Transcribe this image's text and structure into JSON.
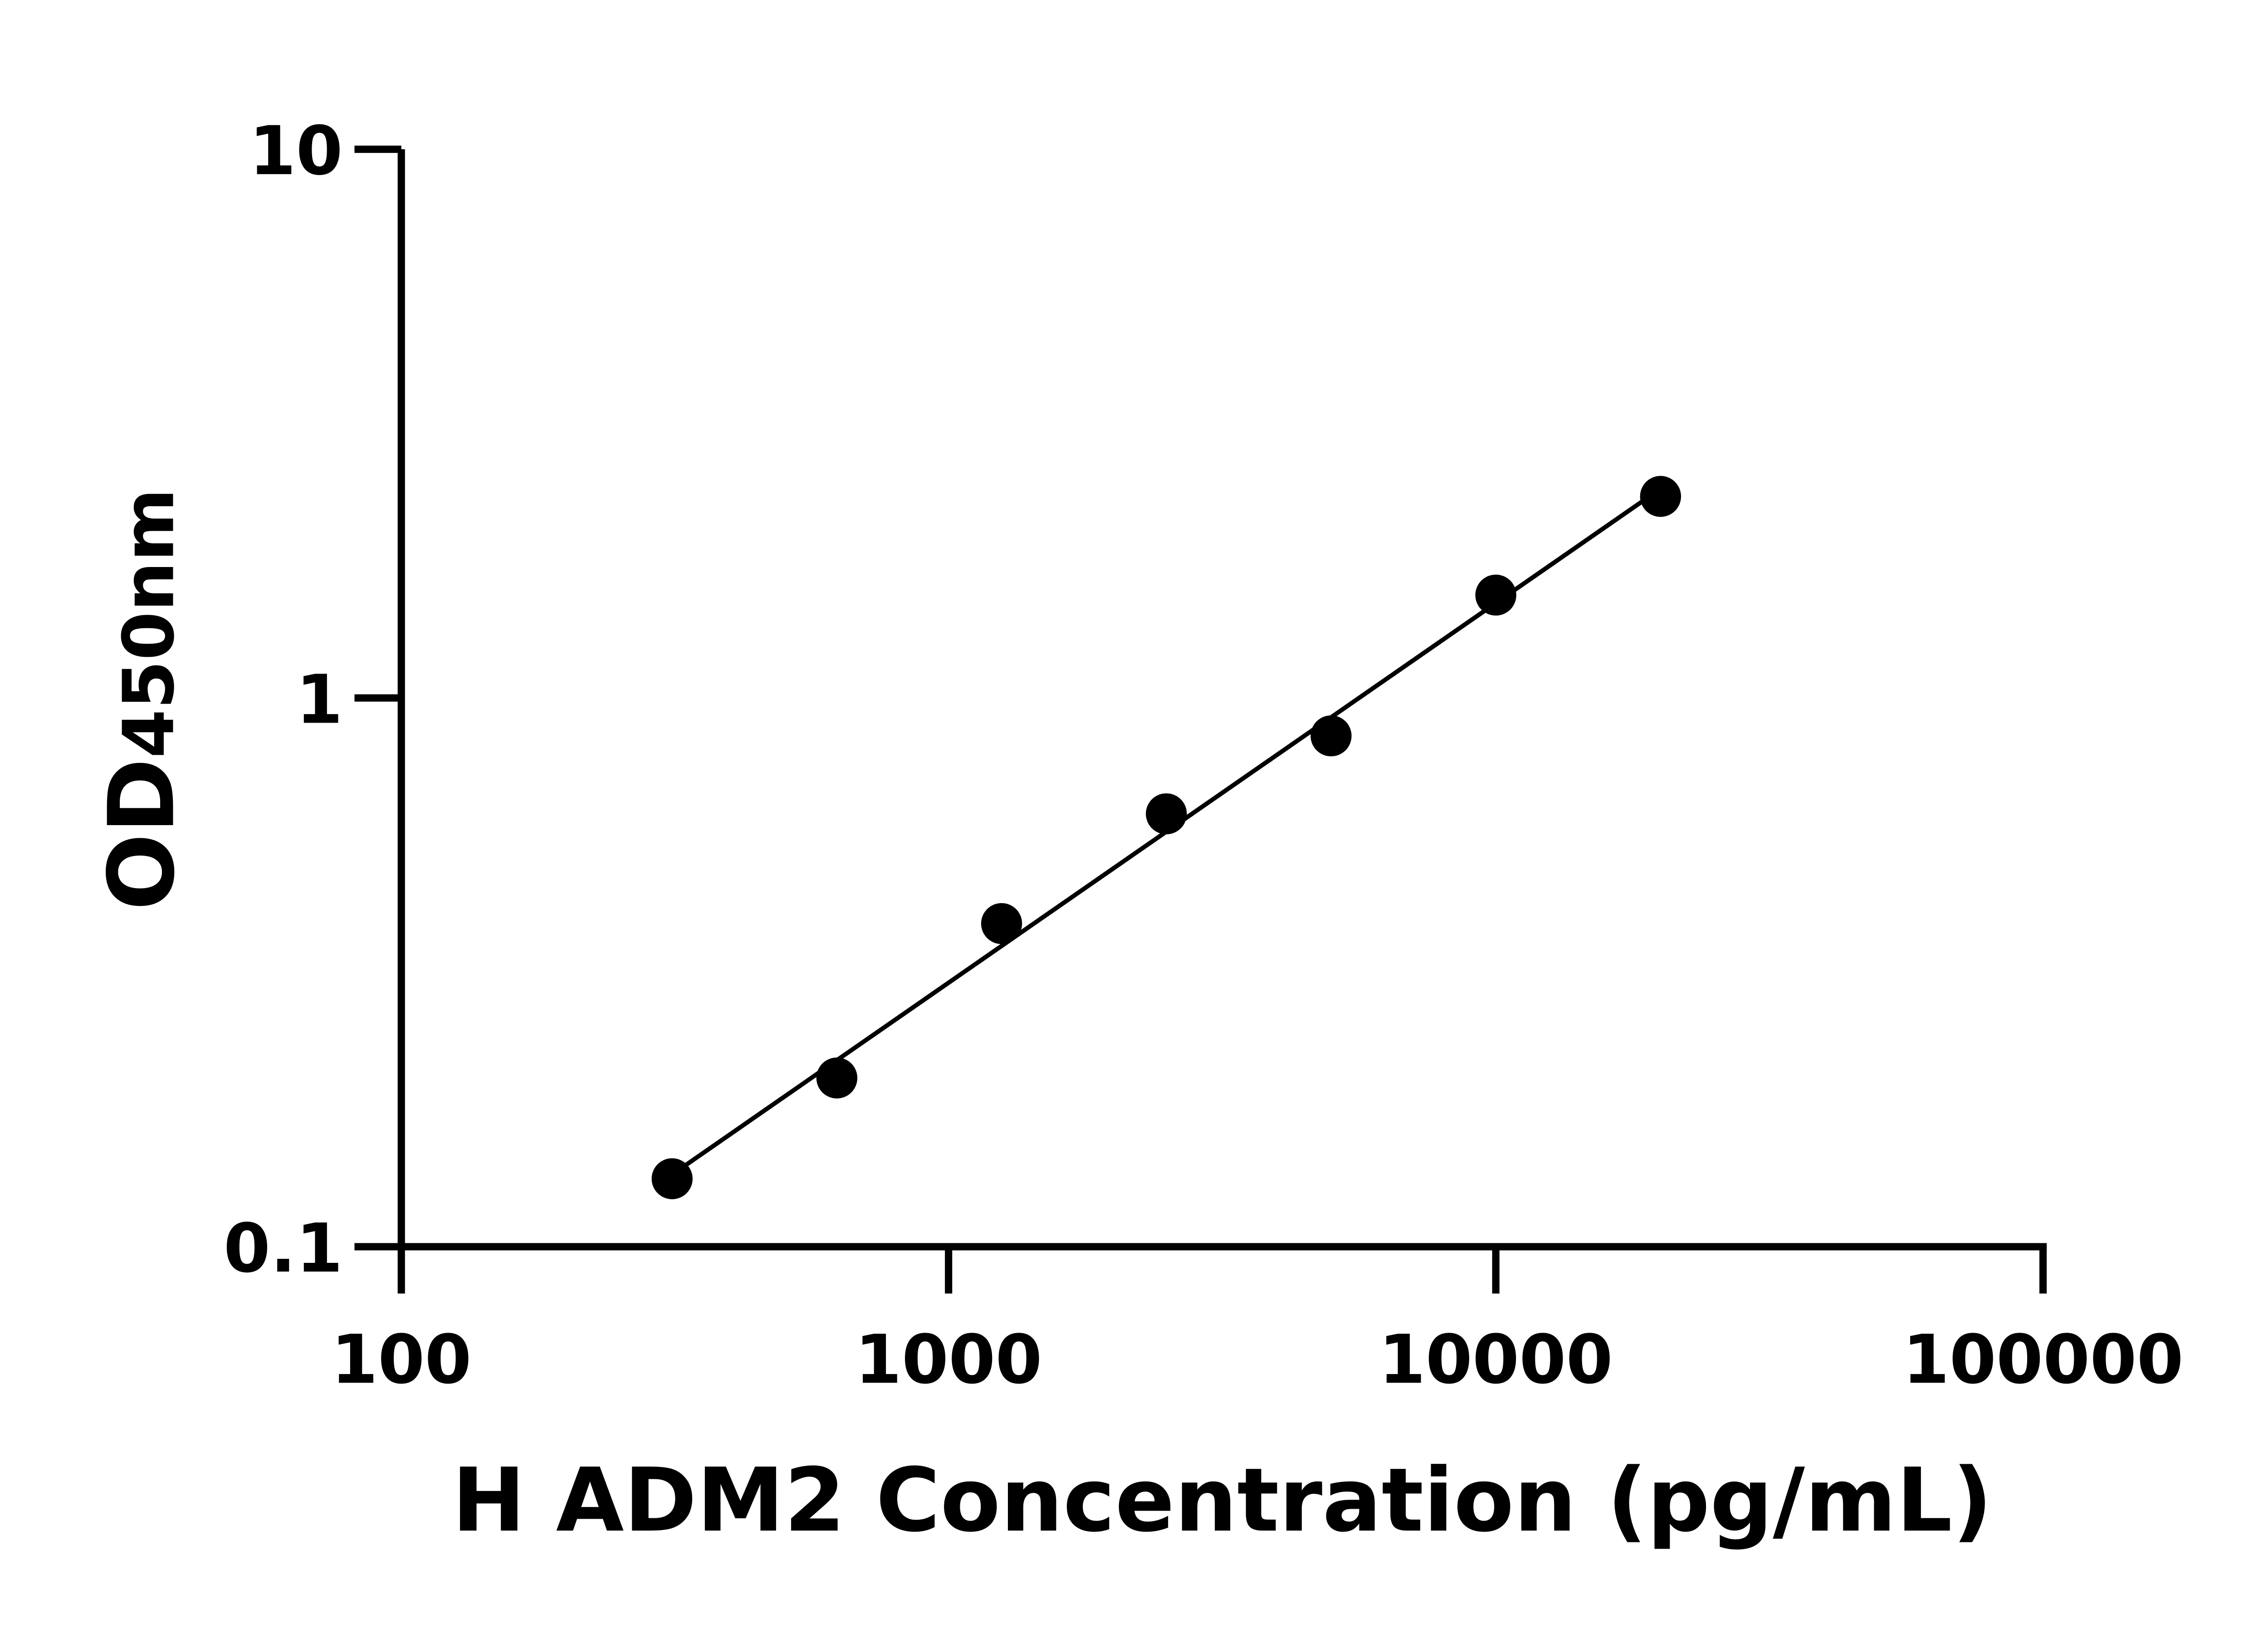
{
  "chart_data": {
    "type": "scatter",
    "title": "",
    "xlabel": "H ADM2 Concentration (pg/mL)",
    "ylabel": {
      "main": "OD",
      "subscript": "450nm"
    },
    "x_scale": "log",
    "y_scale": "log",
    "xlim": [
      100,
      100000
    ],
    "ylim": [
      0.1,
      10
    ],
    "x_ticks": [
      100,
      1000,
      10000,
      100000
    ],
    "x_tick_labels": [
      "100",
      "1000",
      "10000",
      "100000"
    ],
    "y_ticks": [
      0.1,
      1,
      10
    ],
    "y_tick_labels": [
      "0.1",
      "1",
      "10"
    ],
    "grid": false,
    "fit_line": "log-log linear",
    "marker_color": "#000000",
    "series": [
      {
        "x": [
          312.5,
          625,
          1250,
          2500,
          5000,
          10000,
          20000
        ],
        "y": [
          0.133,
          0.203,
          0.388,
          0.615,
          0.853,
          1.54,
          2.33
        ]
      }
    ]
  }
}
